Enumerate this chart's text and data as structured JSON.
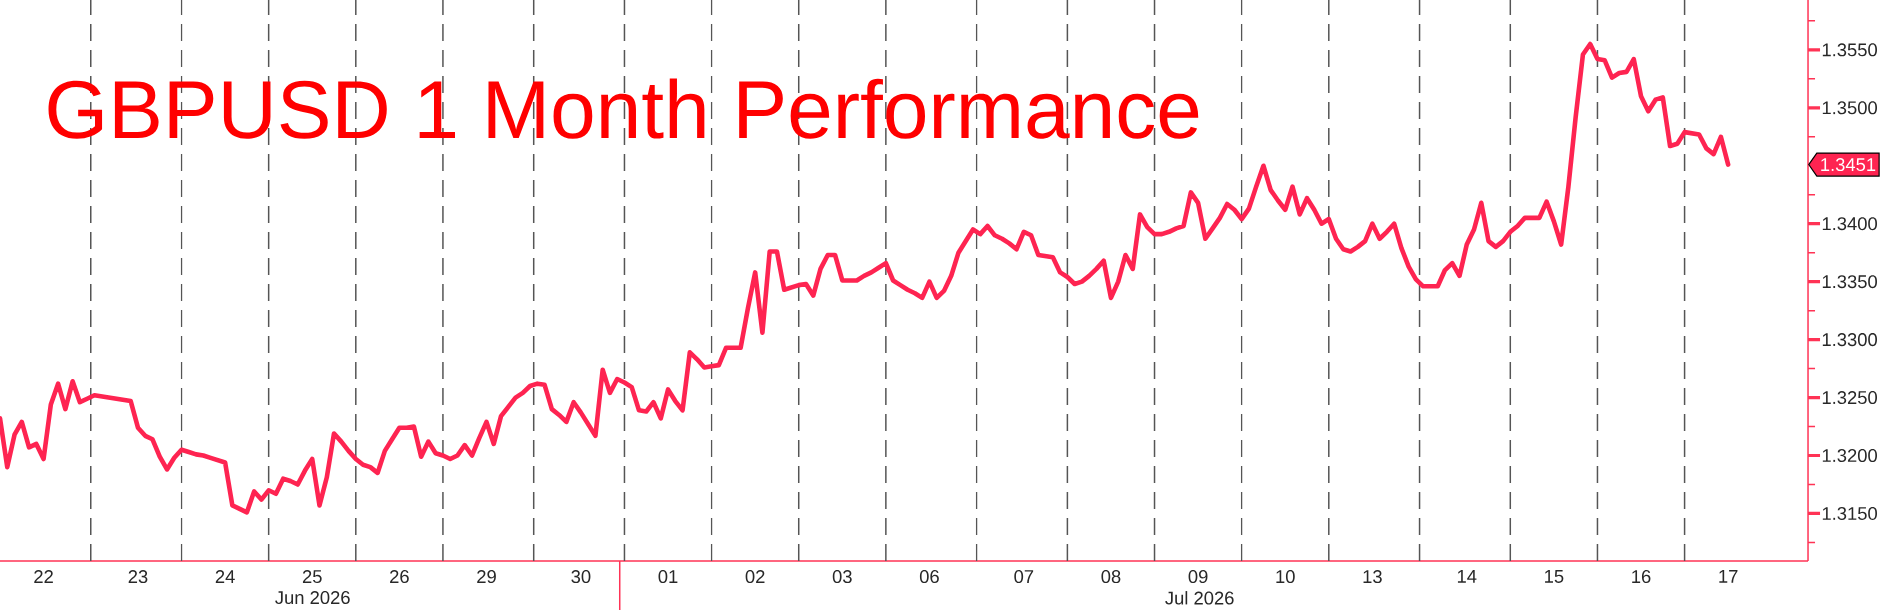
{
  "chart_data": {
    "type": "line",
    "title": "GBPUSD 1 Month Performance",
    "color": "#fe2451",
    "line_style": "solid",
    "categories": [
      null,
      null,
      null,
      null,
      null,
      null,
      "22",
      null,
      null,
      null,
      null,
      null,
      null,
      null,
      null,
      null,
      null,
      null,
      null,
      "23",
      null,
      null,
      null,
      null,
      null,
      null,
      null,
      null,
      null,
      null,
      null,
      "24",
      null,
      null,
      null,
      null,
      null,
      null,
      null,
      null,
      null,
      null,
      null,
      "25",
      null,
      null,
      null,
      null,
      null,
      null,
      null,
      null,
      null,
      null,
      null,
      "26",
      null,
      null,
      null,
      null,
      null,
      null,
      null,
      null,
      null,
      null,
      null,
      "29",
      null,
      null,
      null,
      null,
      null,
      null,
      null,
      null,
      null,
      null,
      null,
      null,
      "30",
      null,
      null,
      null,
      null,
      null,
      null,
      null,
      null,
      null,
      null,
      null,
      "01",
      null,
      null,
      null,
      null,
      null,
      null,
      null,
      null,
      null,
      null,
      null,
      "02",
      null,
      null,
      null,
      null,
      null,
      null,
      null,
      null,
      null,
      null,
      null,
      "03",
      null,
      null,
      null,
      null,
      null,
      null,
      null,
      null,
      null,
      null,
      null,
      "06",
      null,
      null,
      null,
      null,
      null,
      null,
      null,
      null,
      null,
      null,
      null,
      null,
      "07",
      null,
      null,
      null,
      null,
      null,
      null,
      null,
      null,
      null,
      null,
      null,
      "08",
      null,
      null,
      null,
      null,
      null,
      null,
      null,
      null,
      null,
      null,
      null,
      "09",
      null,
      null,
      null,
      null,
      null,
      null,
      null,
      null,
      null,
      null,
      null,
      "10",
      null,
      null,
      null,
      null,
      null,
      null,
      null,
      null,
      null,
      null,
      null,
      "13",
      null,
      null,
      null,
      null,
      null,
      null,
      null,
      null,
      null,
      null,
      null,
      null,
      "14",
      null,
      null,
      null,
      null,
      null,
      null,
      null,
      null,
      null,
      null,
      null,
      "15",
      null,
      null,
      null,
      null,
      null,
      null,
      null,
      null,
      null,
      null,
      null,
      "16",
      null,
      null,
      null,
      null,
      null,
      null,
      null,
      null,
      null,
      null,
      null,
      "17",
      null,
      null,
      null,
      null,
      null,
      null,
      null,
      null,
      null,
      null,
      null
    ],
    "values": [
      1.3232,
      1.319,
      1.3218,
      1.3229,
      1.3207,
      1.321,
      1.3197,
      1.3244,
      1.3262,
      1.324,
      1.3264,
      1.3246,
      1.3249,
      1.3252,
      1.3251,
      1.325,
      1.3249,
      1.3248,
      1.3247,
      1.3224,
      1.3217,
      1.3214,
      1.3199,
      1.3188,
      1.3198,
      1.3205,
      1.3203,
      1.3201,
      1.32,
      1.3198,
      1.3196,
      1.3194,
      1.3157,
      1.3154,
      1.3151,
      1.3169,
      1.3162,
      1.317,
      1.3167,
      1.318,
      1.3178,
      1.3175,
      1.3187,
      1.3197,
      1.3157,
      1.3181,
      1.3219,
      1.3212,
      1.3204,
      1.3197,
      1.3192,
      1.319,
      1.3185,
      1.3204,
      1.3214,
      1.3224,
      1.3224,
      1.3225,
      1.3199,
      1.3212,
      1.3202,
      1.32,
      1.3197,
      1.32,
      1.3209,
      1.32,
      1.3215,
      1.3229,
      1.321,
      1.3234,
      1.3242,
      1.325,
      1.3254,
      1.326,
      1.3262,
      1.3261,
      1.324,
      1.3235,
      1.3229,
      1.3246,
      1.3237,
      1.3227,
      1.3217,
      1.3274,
      1.3254,
      1.3266,
      1.3263,
      1.3259,
      1.3239,
      1.3238,
      1.3246,
      1.3232,
      1.3257,
      1.3247,
      1.3239,
      1.3289,
      1.3283,
      1.3276,
      1.3277,
      1.3278,
      1.3293,
      1.3293,
      1.3293,
      1.3327,
      1.3358,
      1.3306,
      1.3376,
      1.3376,
      1.3343,
      1.3345,
      1.3347,
      1.3348,
      1.3338,
      1.3361,
      1.3373,
      1.3373,
      1.3351,
      1.3351,
      1.3351,
      1.3355,
      1.3358,
      1.3362,
      1.3366,
      1.3351,
      1.3347,
      1.3343,
      1.334,
      1.3336,
      1.335,
      1.3336,
      1.3342,
      1.3355,
      1.3375,
      1.3385,
      1.3395,
      1.3391,
      1.3398,
      1.339,
      1.3387,
      1.3383,
      1.3378,
      1.3393,
      1.339,
      1.3373,
      1.3372,
      1.3371,
      1.3358,
      1.3354,
      1.3348,
      1.335,
      1.3355,
      1.3361,
      1.3368,
      1.3336,
      1.335,
      1.3373,
      1.3361,
      1.3408,
      1.3397,
      1.3391,
      1.3391,
      1.3393,
      1.3396,
      1.3398,
      1.3427,
      1.3418,
      1.3387,
      1.3396,
      1.3405,
      1.3417,
      1.3412,
      1.3404,
      1.3413,
      1.3432,
      1.345,
      1.3429,
      1.342,
      1.3412,
      1.3432,
      1.3408,
      1.3422,
      1.3412,
      1.34,
      1.3404,
      1.3387,
      1.3378,
      1.3376,
      1.338,
      1.3385,
      1.34,
      1.3387,
      1.3393,
      1.34,
      1.3379,
      1.3363,
      1.3352,
      1.3346,
      1.3346,
      1.3346,
      1.336,
      1.3366,
      1.3355,
      1.3382,
      1.3395,
      1.3418,
      1.3385,
      1.338,
      1.3385,
      1.3393,
      1.3398,
      1.3405,
      1.3405,
      1.3405,
      1.3419,
      1.3402,
      1.3382,
      1.3432,
      1.3492,
      1.3546,
      1.3555,
      1.3542,
      1.3541,
      1.3526,
      1.353,
      1.3531,
      1.3542,
      1.351,
      1.3497,
      1.3507,
      1.3509,
      1.3467,
      1.3469,
      1.3479,
      1.3478,
      1.3477,
      1.3465,
      1.346,
      1.3475,
      1.3451,
      null,
      null,
      null,
      null,
      null,
      null,
      null,
      null,
      null,
      null,
      null
    ],
    "ylim": [
      1.3109,
      1.3593
    ],
    "yticks": [
      {
        "value": 1.3125,
        "label": null
      },
      {
        "value": 1.315,
        "label": "1.3150"
      },
      {
        "value": 1.3175,
        "label": null
      },
      {
        "value": 1.32,
        "label": "1.3200"
      },
      {
        "value": 1.3225,
        "label": null
      },
      {
        "value": 1.325,
        "label": "1.3250"
      },
      {
        "value": 1.3275,
        "label": null
      },
      {
        "value": 1.33,
        "label": "1.3300"
      },
      {
        "value": 1.3325,
        "label": null
      },
      {
        "value": 1.335,
        "label": "1.3350"
      },
      {
        "value": 1.3375,
        "label": null
      },
      {
        "value": 1.34,
        "label": "1.3400"
      },
      {
        "value": 1.3425,
        "label": null
      },
      {
        "value": 1.3475,
        "label": null
      },
      {
        "value": 1.35,
        "label": "1.3500"
      },
      {
        "value": 1.3525,
        "label": null
      },
      {
        "value": 1.355,
        "label": "1.3550"
      },
      {
        "value": 1.3575,
        "label": null
      }
    ],
    "x2lim": [
      "2026-06-21T22:00",
      "2026-07-18T10:00"
    ],
    "x2ticks": [
      {
        "value": "2026-06-26T12:00",
        "label": "Jun 2026"
      },
      {
        "value": "2026-07-01",
        "label": null
      },
      {
        "value": "2026-07-09T12:00",
        "label": "Jul 2026"
      }
    ],
    "annotations": [
      "1.3451"
    ]
  }
}
